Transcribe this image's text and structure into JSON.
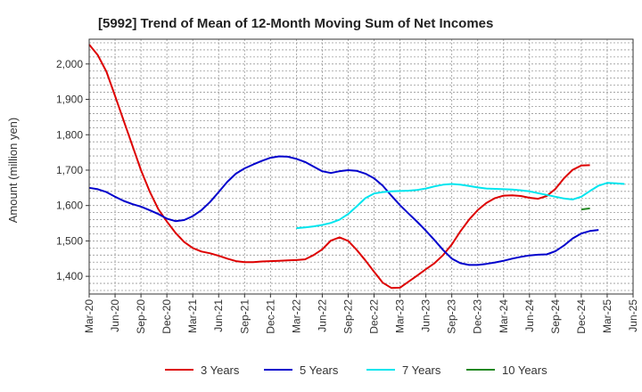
{
  "chart_data": {
    "type": "line",
    "title": "[5992]  Trend of Mean of 12-Month Moving Sum of Net Incomes",
    "ylabel": "Amount (million yen)",
    "xlabel": "",
    "ylim": [
      1350,
      2070
    ],
    "y_ticks": [
      1400,
      1500,
      1600,
      1700,
      1800,
      1900,
      2000
    ],
    "y_tick_labels": [
      "1,400",
      "1,500",
      "1,600",
      "1,700",
      "1,800",
      "1,900",
      "2,000"
    ],
    "x_tick_labels": [
      "Mar-20",
      "Jun-20",
      "Sep-20",
      "Dec-20",
      "Mar-21",
      "Jun-21",
      "Sep-21",
      "Dec-21",
      "Mar-22",
      "Jun-22",
      "Sep-22",
      "Dec-22",
      "Mar-23",
      "Jun-23",
      "Sep-23",
      "Dec-23",
      "Mar-24",
      "Jun-24",
      "Sep-24",
      "Dec-24",
      "Mar-25",
      "Jun-25"
    ],
    "grid": true,
    "legend_position": "bottom",
    "series": [
      {
        "name": "3 Years",
        "color": "#dd0000",
        "start_index": 0,
        "values": [
          2055,
          2025,
          1978,
          1910,
          1840,
          1770,
          1700,
          1640,
          1590,
          1555,
          1523,
          1497,
          1480,
          1470,
          1465,
          1458,
          1450,
          1443,
          1440,
          1440,
          1442,
          1443,
          1444,
          1445,
          1446,
          1448,
          1460,
          1476,
          1501,
          1510,
          1500,
          1474,
          1445,
          1413,
          1382,
          1367,
          1368,
          1385,
          1402,
          1420,
          1437,
          1460,
          1490,
          1527,
          1560,
          1587,
          1607,
          1621,
          1628,
          1629,
          1627,
          1622,
          1619,
          1627,
          1647,
          1677,
          1701,
          1713,
          1714
        ]
      },
      {
        "name": "5 Years",
        "color": "#0000cc",
        "start_index": 0,
        "values": [
          1650,
          1646,
          1638,
          1625,
          1613,
          1604,
          1597,
          1587,
          1576,
          1563,
          1556,
          1559,
          1570,
          1587,
          1610,
          1638,
          1667,
          1690,
          1705,
          1716,
          1726,
          1735,
          1739,
          1738,
          1732,
          1723,
          1710,
          1697,
          1692,
          1697,
          1700,
          1698,
          1690,
          1677,
          1656,
          1628,
          1601,
          1577,
          1554,
          1529,
          1502,
          1474,
          1450,
          1437,
          1432,
          1432,
          1435,
          1439,
          1444,
          1450,
          1455,
          1459,
          1461,
          1462,
          1471,
          1487,
          1507,
          1521,
          1528,
          1531
        ]
      },
      {
        "name": "7 Years",
        "color": "#00e5ee",
        "start_index": 24,
        "values": [
          1536,
          1538,
          1541,
          1545,
          1551,
          1560,
          1576,
          1598,
          1621,
          1634,
          1638,
          1640,
          1641,
          1642,
          1644,
          1648,
          1654,
          1659,
          1661,
          1659,
          1655,
          1651,
          1648,
          1647,
          1646,
          1645,
          1643,
          1640,
          1635,
          1630,
          1625,
          1620,
          1617,
          1625,
          1641,
          1656,
          1664,
          1663,
          1661
        ]
      },
      {
        "name": "10 Years",
        "color": "#228822",
        "start_index": 57,
        "values": [
          1589,
          1592
        ]
      }
    ]
  }
}
